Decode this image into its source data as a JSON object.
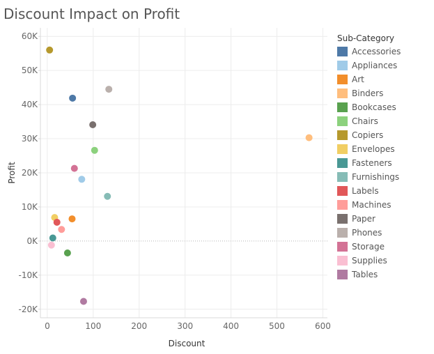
{
  "chart_data": {
    "type": "scatter",
    "title": "Discount Impact on Profit",
    "xlabel": "Discount",
    "ylabel": "Profit",
    "xlim": [
      -15,
      610
    ],
    "ylim": [
      -22500,
      62500
    ],
    "x_ticks": [
      0,
      100,
      200,
      300,
      400,
      500,
      600
    ],
    "x_tick_labels": [
      "0",
      "100",
      "200",
      "300",
      "400",
      "500",
      "600"
    ],
    "y_ticks": [
      -20000,
      -10000,
      0,
      10000,
      20000,
      30000,
      40000,
      50000,
      60000
    ],
    "y_tick_labels": [
      "-20K",
      "-10K",
      "0K",
      "10K",
      "20K",
      "30K",
      "40K",
      "50K",
      "60K"
    ],
    "grid": true,
    "legend_title": "Sub-Category",
    "legend_position": "right",
    "series": [
      {
        "name": "Accessories",
        "color": "#4e79a7",
        "x": 55,
        "y": 41900
      },
      {
        "name": "Appliances",
        "color": "#a0cbe8",
        "x": 75,
        "y": 18100
      },
      {
        "name": "Art",
        "color": "#f28e2b",
        "x": 54,
        "y": 6500
      },
      {
        "name": "Binders",
        "color": "#ffbe7d",
        "x": 570,
        "y": 30300
      },
      {
        "name": "Bookcases",
        "color": "#59a14f",
        "x": 44,
        "y": -3500
      },
      {
        "name": "Chairs",
        "color": "#8cd17d",
        "x": 103,
        "y": 26600
      },
      {
        "name": "Copiers",
        "color": "#b6992d",
        "x": 5,
        "y": 56000
      },
      {
        "name": "Envelopes",
        "color": "#f1ce63",
        "x": 16,
        "y": 6900
      },
      {
        "name": "Fasteners",
        "color": "#499894",
        "x": 12,
        "y": 900
      },
      {
        "name": "Furnishings",
        "color": "#86bcb6",
        "x": 131,
        "y": 13100
      },
      {
        "name": "Labels",
        "color": "#e15759",
        "x": 21,
        "y": 5500
      },
      {
        "name": "Machines",
        "color": "#ff9d9a",
        "x": 31,
        "y": 3400
      },
      {
        "name": "Paper",
        "color": "#79706e",
        "x": 99,
        "y": 34100
      },
      {
        "name": "Phones",
        "color": "#bab0ac",
        "x": 134,
        "y": 44500
      },
      {
        "name": "Storage",
        "color": "#d37295",
        "x": 59,
        "y": 21300
      },
      {
        "name": "Supplies",
        "color": "#fabfd2",
        "x": 9,
        "y": -1200
      },
      {
        "name": "Tables",
        "color": "#b07aa1",
        "x": 79,
        "y": -17700
      }
    ]
  }
}
